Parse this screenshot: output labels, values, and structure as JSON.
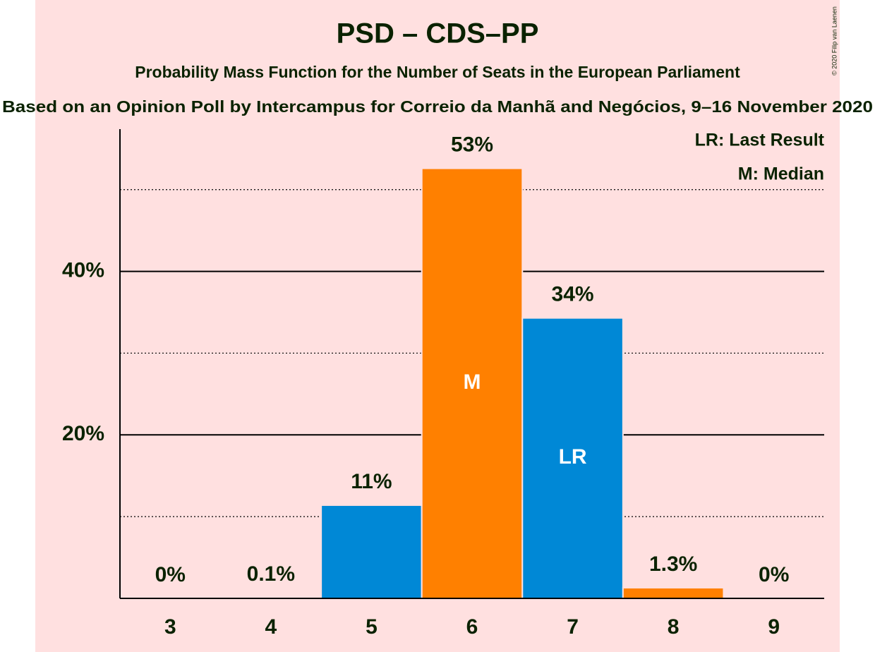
{
  "chart_data": {
    "type": "bar",
    "title": "PSD – CDS–PP",
    "subtitle": "Probability Mass Function for the Number of Seats in the European Parliament",
    "subtitle2": "Based on an Opinion Poll by Intercampus for Correio da Manhã and Negócios, 9–16 November 2020",
    "credit": "© 2020 Filip van Laenen",
    "notes": [
      "LR: Last Result",
      "M: Median"
    ],
    "categories": [
      "3",
      "4",
      "5",
      "6",
      "7",
      "8",
      "9"
    ],
    "values": [
      0,
      0.1,
      11.4,
      52.6,
      34.3,
      1.3,
      0
    ],
    "value_labels": [
      "0%",
      "0.1%",
      "11%",
      "53%",
      "34%",
      "1.3%",
      "0%"
    ],
    "colors": [
      "#0088d6",
      "#ff8000",
      "#0088d6",
      "#ff8000",
      "#0088d6",
      "#ff8000",
      "#0088d6"
    ],
    "annotations": [
      {
        "x": "6",
        "label": "M"
      },
      {
        "x": "7",
        "label": "LR"
      }
    ],
    "ylim": [
      0,
      57.4
    ],
    "yticks": [
      {
        "value": 20,
        "label": "20%"
      },
      {
        "value": 40,
        "label": "40%"
      }
    ],
    "minor_yticks": [
      10,
      30,
      50
    ],
    "grid": true
  }
}
